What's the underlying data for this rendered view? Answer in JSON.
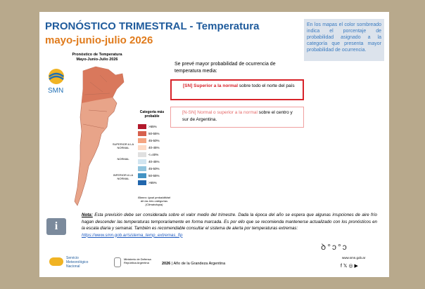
{
  "header": {
    "title": "PRONÓSTICO TRIMESTRAL - Temperatura",
    "subtitle": "mayo-junio-julio 2026"
  },
  "info_box": "En los mapas el color sombreado indica el porcentaje de probabilidad asignado a la categoría que presenta mayor probabilidad de ocurrencia.",
  "map": {
    "title": "Pronóstico de Temperatura",
    "subtitle": "Mayo-Junio-Julio 2026",
    "logo": "SMN",
    "legend_title": "Categoría más probable",
    "legend_items": [
      ">55%",
      "50-55%",
      "45-50%",
      "40-45%",
      "<=40%",
      "40-45%",
      "45-50%",
      "50-55%",
      ">55%"
    ],
    "groups": [
      "SUPERIOR A LA NORMAL",
      "NORMAL",
      "INFERIOR A LA NORMAL"
    ],
    "note": "Blanco: igual probabilidad de las tres categorías (Climatología)"
  },
  "forecast": {
    "intro": "Se prevé mayor probabilidad de ocurrencia de temperatura media:",
    "items": [
      {
        "label": "[SN] Superior a la normal",
        "text": "sobre todo el norte del país"
      },
      {
        "label": "[N-SN] Normal o superior a la normal",
        "text": "sobre el centro y sur de Argentina."
      }
    ]
  },
  "note": {
    "label": "Nota:",
    "text": "Esta previsión debe ser considerada sobre el valor medio del trimestre. Dada la época del año se espera que algunas irrupciones de aire frío hagan descender las temperaturas temporariamente en forma marcada. Es por ello que se recomienda mantenerse actualizado con los pronósticos en la escala diaria y semanal. También es recomendable consultar el sistema de alerta por temperaturas extremas:",
    "link": "https://www.smn.gob.ar/sistema_temp_extremas_fip"
  },
  "footer": {
    "org": "Servicio Meteorológico Nacional",
    "ministry": "Ministerio de Defensa República Argentina",
    "year_label": "2026",
    "year_text": "Año de la Grandeza Argentina",
    "web": "www.smn.gob.ar"
  }
}
